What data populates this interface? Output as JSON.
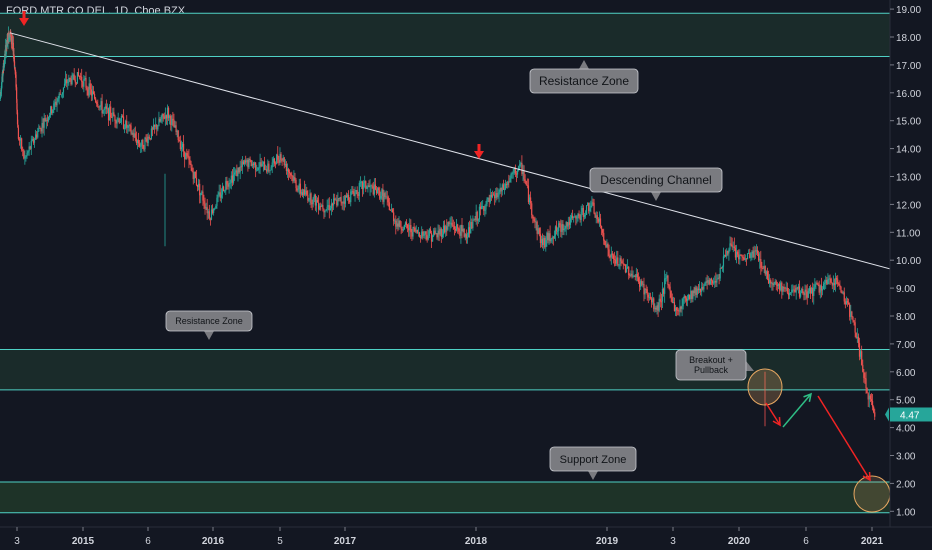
{
  "symbol_label": "FORD MTR CO DEL, 1D, Cboe BZX",
  "chart_data": {
    "type": "candlestick",
    "y_ticks": [
      "19.00",
      "18.00",
      "17.00",
      "16.00",
      "15.00",
      "14.00",
      "13.00",
      "12.00",
      "11.00",
      "10.00",
      "9.00",
      "8.00",
      "7.00",
      "6.00",
      "5.00",
      "4.00",
      "3.00",
      "2.00",
      "1.00"
    ],
    "ylim": [
      0.5,
      19.3
    ],
    "x_ticks": [
      "3",
      "2015",
      "6",
      "2016",
      "5",
      "2017",
      "2018",
      "2019",
      "3",
      "2020",
      "6",
      "2021"
    ],
    "last_price": "4.47",
    "price_path": [
      {
        "t": 0.0,
        "p": 15.9
      },
      {
        "t": 0.35,
        "p": 17.7
      },
      {
        "t": 0.55,
        "p": 18.2
      },
      {
        "t": 0.75,
        "p": 17.5
      },
      {
        "t": 0.9,
        "p": 16.3
      },
      {
        "t": 1.0,
        "p": 14.5
      },
      {
        "t": 1.1,
        "p": 13.6
      },
      {
        "t": 1.3,
        "p": 14.6
      },
      {
        "t": 1.55,
        "p": 15.5
      },
      {
        "t": 1.75,
        "p": 16.4
      },
      {
        "t": 1.95,
        "p": 16.6
      },
      {
        "t": 2.3,
        "p": 15.4
      },
      {
        "t": 2.6,
        "p": 15.0
      },
      {
        "t": 2.9,
        "p": 14.1
      },
      {
        "t": 3.1,
        "p": 14.7
      },
      {
        "t": 3.3,
        "p": 15.3
      },
      {
        "t": 3.5,
        "p": 14.2
      },
      {
        "t": 3.75,
        "p": 12.8
      },
      {
        "t": 3.95,
        "p": 11.6
      },
      {
        "t": 4.2,
        "p": 12.8
      },
      {
        "t": 4.5,
        "p": 13.5
      },
      {
        "t": 4.85,
        "p": 13.3
      },
      {
        "t": 5.0,
        "p": 13.8
      },
      {
        "t": 5.3,
        "p": 12.5
      },
      {
        "t": 5.7,
        "p": 11.9
      },
      {
        "t": 6.0,
        "p": 12.2
      },
      {
        "t": 6.3,
        "p": 12.7
      },
      {
        "t": 6.6,
        "p": 12.3
      },
      {
        "t": 6.8,
        "p": 11.3
      },
      {
        "t": 7.1,
        "p": 11.0
      },
      {
        "t": 7.4,
        "p": 10.9
      },
      {
        "t": 7.6,
        "p": 11.3
      },
      {
        "t": 7.85,
        "p": 10.9
      },
      {
        "t": 8.1,
        "p": 11.9
      },
      {
        "t": 8.4,
        "p": 12.5
      },
      {
        "t": 8.6,
        "p": 13.2
      },
      {
        "t": 8.7,
        "p": 13.3
      },
      {
        "t": 8.85,
        "p": 11.7
      },
      {
        "t": 9.0,
        "p": 10.6
      },
      {
        "t": 9.3,
        "p": 11.2
      },
      {
        "t": 9.6,
        "p": 11.6
      },
      {
        "t": 9.75,
        "p": 12.0
      },
      {
        "t": 9.9,
        "p": 11.2
      },
      {
        "t": 10.05,
        "p": 10.1
      },
      {
        "t": 10.3,
        "p": 9.7
      },
      {
        "t": 10.5,
        "p": 9.2
      },
      {
        "t": 10.75,
        "p": 8.2
      },
      {
        "t": 10.9,
        "p": 9.3
      },
      {
        "t": 11.05,
        "p": 8.1
      },
      {
        "t": 11.2,
        "p": 8.7
      },
      {
        "t": 11.4,
        "p": 9.0
      },
      {
        "t": 11.65,
        "p": 9.3
      },
      {
        "t": 11.85,
        "p": 10.5
      },
      {
        "t": 12.05,
        "p": 10.0
      },
      {
        "t": 12.25,
        "p": 10.3
      },
      {
        "t": 12.45,
        "p": 9.3
      },
      {
        "t": 12.7,
        "p": 8.9
      },
      {
        "t": 12.95,
        "p": 8.8
      },
      {
        "t": 13.2,
        "p": 9.0
      },
      {
        "t": 13.45,
        "p": 9.3
      },
      {
        "t": 13.6,
        "p": 8.6
      },
      {
        "t": 13.75,
        "p": 7.5
      },
      {
        "t": 13.85,
        "p": 6.2
      },
      {
        "t": 13.95,
        "p": 5.0
      },
      {
        "t": 14.05,
        "p": 4.47
      }
    ],
    "annotations": {
      "resistance_top": "Resistance Zone",
      "descending_channel": "Descending Channel",
      "resistance_mid": "Resistance Zone",
      "breakout": "Breakout + Pullback",
      "support": "Support Zone"
    },
    "zones": [
      {
        "name": "resistance-top",
        "from": 17.3,
        "to": 18.85
      },
      {
        "name": "resistance-mid",
        "from": 5.35,
        "to": 6.8
      },
      {
        "name": "support",
        "from": 0.95,
        "to": 2.05
      }
    ],
    "trendline": [
      {
        "t": 0.55,
        "p": 18.15
      },
      {
        "t": 17.3,
        "p": 9.4
      }
    ],
    "colors": {
      "bg": "#131722",
      "up": "#26a69a",
      "down": "#ef5350",
      "zone_line": "#4fd1c5",
      "zone_fill": "#1a2b2a",
      "support_fill": "#1e3328",
      "trendline": "#e0e3eb",
      "label_bg": "#7a7b80",
      "arrow_red": "#f02424",
      "arrow_green": "#2ebd85",
      "circle": "#e8a862"
    }
  }
}
